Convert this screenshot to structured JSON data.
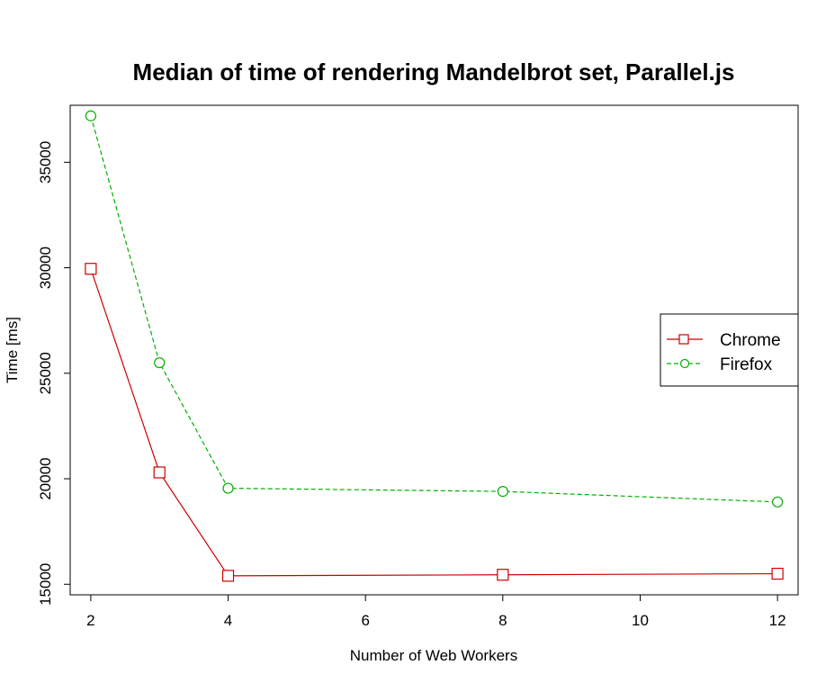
{
  "chart_data": {
    "type": "line",
    "title": "Median of time of rendering Mandelbrot set, Parallel.js",
    "xlabel": "Number of Web Workers",
    "ylabel": "Time [ms]",
    "xlim": [
      1.7,
      12.3
    ],
    "ylim": [
      14500,
      37700
    ],
    "xticks": [
      2,
      4,
      6,
      8,
      10,
      12
    ],
    "yticks": [
      15000,
      20000,
      25000,
      30000,
      35000
    ],
    "xtick_labels": [
      "2",
      "4",
      "6",
      "8",
      "10",
      "12"
    ],
    "ytick_labels": [
      "15000",
      "20000",
      "25000",
      "30000",
      "35000"
    ],
    "grid": false,
    "legend_position": "right",
    "series": [
      {
        "name": "Chrome",
        "color": "#cc0000",
        "marker": "square",
        "line_style": "solid",
        "x": [
          2,
          3,
          4,
          8,
          12
        ],
        "y": [
          29950,
          20300,
          15400,
          15450,
          15500
        ]
      },
      {
        "name": "Firefox",
        "color": "#00b000",
        "marker": "circle",
        "line_style": "dashed",
        "x": [
          2,
          3,
          4,
          8,
          12
        ],
        "y": [
          37200,
          25500,
          19550,
          19400,
          18900
        ]
      }
    ]
  }
}
